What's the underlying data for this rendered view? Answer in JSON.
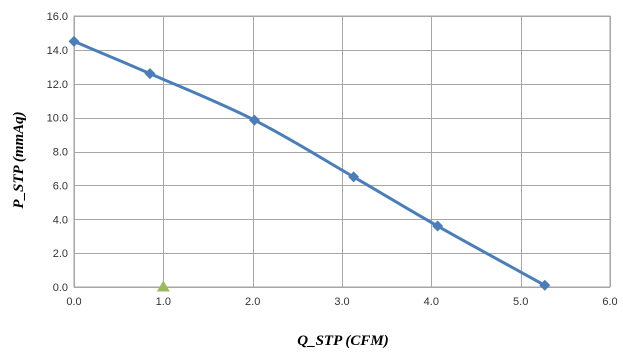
{
  "chart_data": {
    "type": "scatter",
    "xlabel": "Q_STP (CFM)",
    "ylabel": "P_STP (mmAq)",
    "xlim": [
      0,
      6
    ],
    "ylim": [
      0,
      16
    ],
    "x_ticks": [
      "0.0",
      "1.0",
      "2.0",
      "3.0",
      "4.0",
      "5.0",
      "6.0"
    ],
    "y_ticks": [
      "0.0",
      "2.0",
      "4.0",
      "6.0",
      "8.0",
      "10.0",
      "12.0",
      "14.0",
      "16.0"
    ],
    "grid": true,
    "series": [
      {
        "style": "smooth-line-with-diamond-markers",
        "color": "#4a7ebb",
        "points": [
          {
            "x": 0.0,
            "y": 14.5
          },
          {
            "x": 0.85,
            "y": 12.6
          },
          {
            "x": 2.02,
            "y": 9.85
          },
          {
            "x": 3.13,
            "y": 6.5
          },
          {
            "x": 4.07,
            "y": 3.6
          },
          {
            "x": 5.27,
            "y": 0.1
          }
        ]
      },
      {
        "style": "triangle-marker",
        "color": "#9bbb59",
        "points": [
          {
            "x": 1.0,
            "y": 0.0
          }
        ]
      }
    ]
  }
}
